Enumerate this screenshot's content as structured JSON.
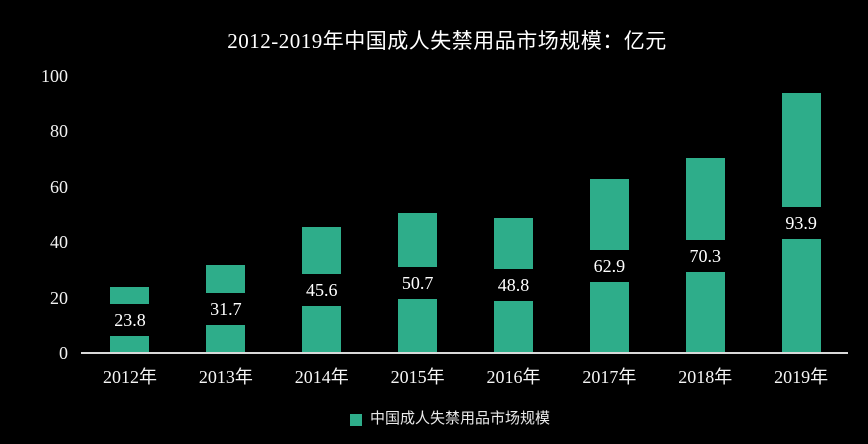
{
  "chart_data": {
    "type": "bar",
    "title": "2012-2019年中国成人失禁用品市场规模：亿元",
    "categories": [
      "2012年",
      "2013年",
      "2014年",
      "2015年",
      "2016年",
      "2017年",
      "2018年",
      "2019年"
    ],
    "values": [
      23.8,
      31.7,
      45.6,
      50.7,
      48.8,
      62.9,
      70.3,
      93.9
    ],
    "value_labels": [
      "23.8",
      "31.7",
      "45.6",
      "50.7",
      "48.8",
      "62.9",
      "70.3",
      "93.9"
    ],
    "ylim": [
      0,
      100
    ],
    "yticks": [
      "0",
      "20",
      "40",
      "60",
      "80",
      "100"
    ],
    "grid": false,
    "legend": {
      "label": "中国成人失禁用品市场规模",
      "position": "bottom"
    },
    "colors": {
      "background": "#000000",
      "bar": "#2EAD8A",
      "axis_line": "#D9D9D9",
      "text": "#FFFFFF",
      "value_label_bg": "#000000"
    }
  }
}
